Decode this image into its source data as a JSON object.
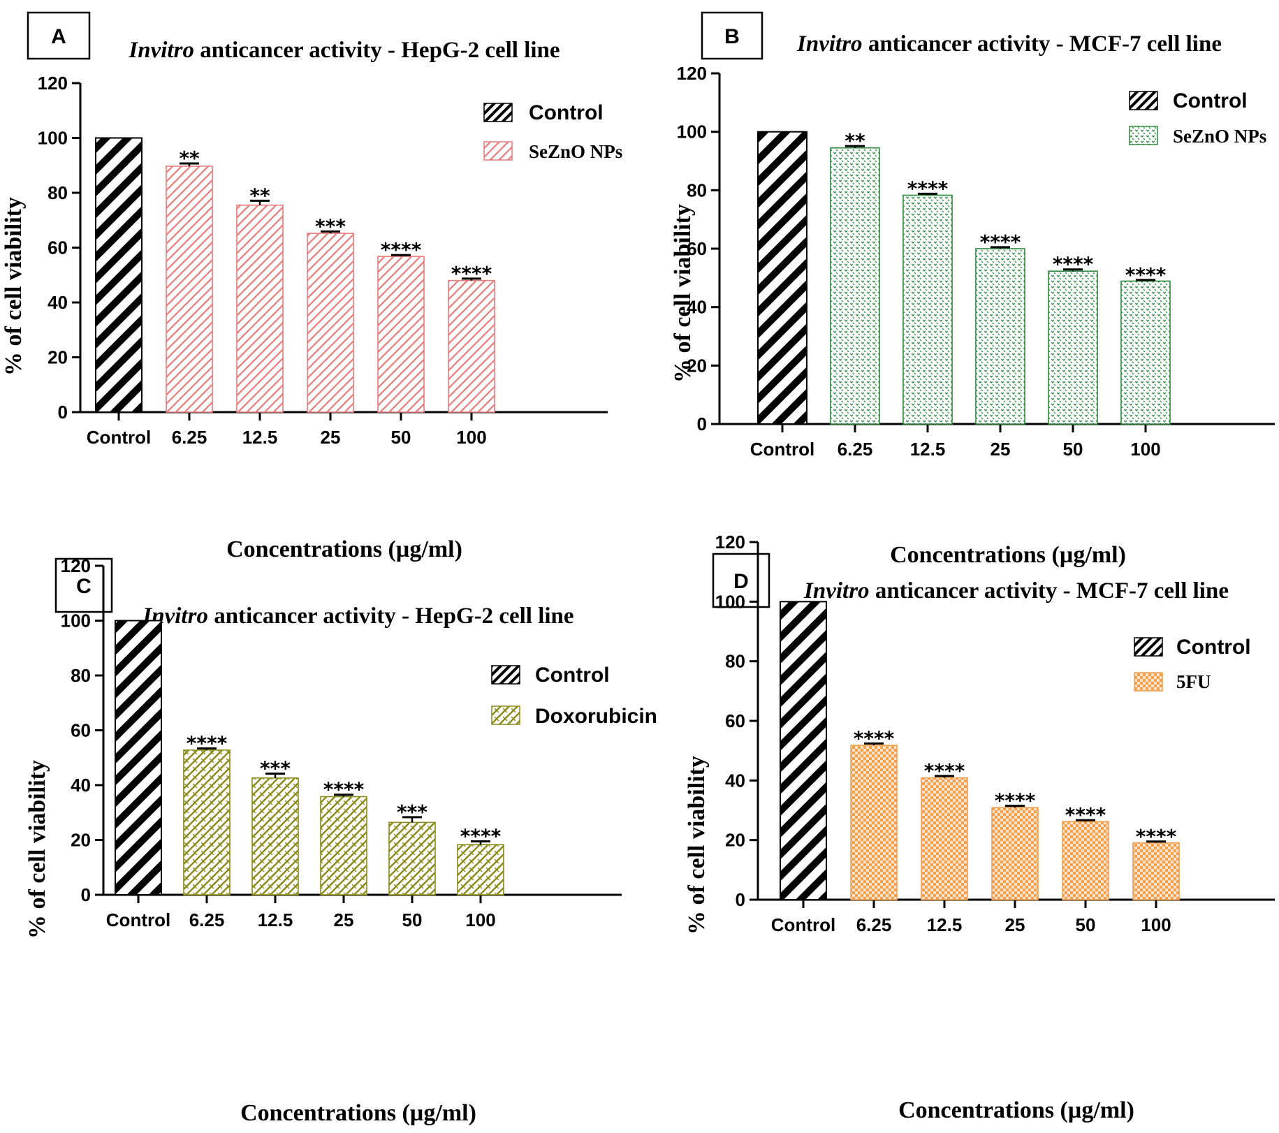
{
  "chart_data": [
    {
      "panel": "A",
      "type": "bar",
      "title_italic": "Invitro",
      "title_rest": " anticancer activity - HepG-2 cell line",
      "xlabel": "Concentrations (µg/ml)",
      "ylabel": "% of cell viability",
      "ylim": [
        0,
        120
      ],
      "yticks": [
        0,
        20,
        40,
        60,
        80,
        100,
        120
      ],
      "categories": [
        "Control",
        "6.25",
        "12.5",
        "25",
        "50",
        "100"
      ],
      "values": [
        100,
        89.7,
        75.5,
        65.2,
        56.8,
        48.0
      ],
      "errors": [
        0,
        1.0,
        1.6,
        0.7,
        0.5,
        0.7
      ],
      "significance": [
        "",
        "**",
        "**",
        "***",
        "****",
        "****"
      ],
      "legend": [
        "Control",
        "SeZnO NPs"
      ],
      "legend_position": "top-right",
      "colors": {
        "treatment": "#e87a7a",
        "control": "#000000"
      }
    },
    {
      "panel": "B",
      "type": "bar",
      "title_italic": "Invitro",
      "title_rest": " anticancer activity - MCF-7 cell line",
      "xlabel": "Concentrations (µg/ml)",
      "ylabel": "% of cell viability",
      "ylim": [
        0,
        120
      ],
      "yticks": [
        0,
        20,
        40,
        60,
        80,
        100,
        120
      ],
      "categories": [
        "Control",
        "6.25",
        "12.5",
        "25",
        "50",
        "100"
      ],
      "values": [
        100,
        94.5,
        78.3,
        60.0,
        52.3,
        48.9
      ],
      "errors": [
        0,
        0.6,
        0.5,
        0.5,
        0.6,
        0.4
      ],
      "significance": [
        "",
        "**",
        "****",
        "****",
        "****",
        "****"
      ],
      "legend": [
        "Control",
        "SeZnO NPs"
      ],
      "legend_position": "top-right",
      "colors": {
        "treatment": "#2e8b3e",
        "control": "#000000"
      }
    },
    {
      "panel": "C",
      "type": "bar",
      "title_italic": "Invitro",
      "title_rest": " anticancer activity - HepG-2 cell line",
      "xlabel": "Concentrations (µg/ml)",
      "ylabel": "% of cell viability",
      "ylim": [
        0,
        120
      ],
      "yticks": [
        0,
        20,
        40,
        60,
        80,
        100,
        120
      ],
      "categories": [
        "Control",
        "6.25",
        "12.5",
        "25",
        "50",
        "100"
      ],
      "values": [
        100,
        52.8,
        42.6,
        35.8,
        26.4,
        18.3
      ],
      "errors": [
        0,
        0.6,
        1.6,
        0.7,
        1.9,
        1.2
      ],
      "significance": [
        "",
        "****",
        "***",
        "****",
        "***",
        "****"
      ],
      "legend": [
        "Control",
        "Doxorubicin"
      ],
      "legend_position": "top-right",
      "colors": {
        "treatment": "#8a8a1a",
        "control": "#000000"
      }
    },
    {
      "panel": "D",
      "type": "bar",
      "title_italic": "Invitro",
      "title_rest": " anticancer activity - MCF-7 cell line",
      "xlabel": "Concentrations (µg/ml)",
      "ylabel": "% of cell viability",
      "ylim": [
        0,
        120
      ],
      "yticks": [
        0,
        20,
        40,
        60,
        80,
        100,
        120
      ],
      "categories": [
        "Control",
        "6.25",
        "12.5",
        "25",
        "50",
        "100"
      ],
      "values": [
        100,
        51.8,
        40.9,
        30.9,
        26.2,
        19.1
      ],
      "errors": [
        0,
        0.6,
        0.6,
        0.6,
        0.5,
        0.4
      ],
      "significance": [
        "",
        "****",
        "****",
        "****",
        "****",
        "****"
      ],
      "legend": [
        "Control",
        "5FU"
      ],
      "legend_position": "top-right",
      "colors": {
        "treatment": "#f0a050",
        "control": "#000000"
      }
    }
  ]
}
